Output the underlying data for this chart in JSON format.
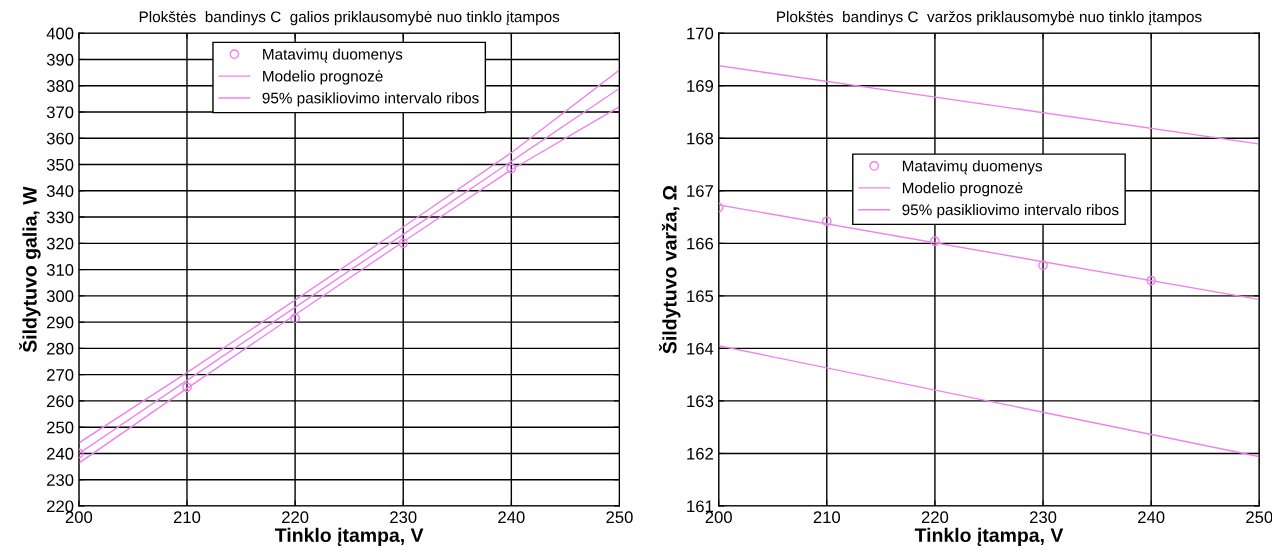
{
  "chart_data": [
    {
      "type": "line",
      "title": "Plokštės  bandinys C  galios priklausomybė nuo tinklo įtampos",
      "xlabel": "Tinklo įtampa, V",
      "ylabel": "Šildytuvo galia, W",
      "xlim": [
        200,
        250
      ],
      "xticks": [
        200,
        210,
        220,
        230,
        240,
        250
      ],
      "ylim": [
        220,
        400
      ],
      "yticks": [
        220,
        230,
        240,
        250,
        260,
        270,
        280,
        290,
        300,
        310,
        320,
        330,
        340,
        350,
        360,
        370,
        380,
        390,
        400
      ],
      "grid": true,
      "legend": "top",
      "series": [
        {
          "name": "Matavimų duomenys",
          "type": "scatter",
          "marker": "circle",
          "color": "#ee82ee",
          "x": [
            200,
            210,
            220,
            230,
            240
          ],
          "values": [
            240,
            265.2,
            291.5,
            320,
            348.5
          ]
        },
        {
          "name": "Modelio prognozė",
          "color": "#ee82ee",
          "x": [
            200,
            210,
            220,
            230,
            240,
            250
          ],
          "values": [
            240,
            267.8,
            295.6,
            323.4,
            351.2,
            379
          ]
        },
        {
          "name": "95% pasikliovimo intervalo ribos",
          "color": "#ee82ee",
          "x": [
            200,
            210,
            220,
            230,
            240,
            250
          ],
          "values": [
            244,
            270.8,
            298.4,
            326.2,
            354.5,
            386
          ]
        },
        {
          "color": "#ee82ee",
          "x": [
            200,
            210,
            220,
            230,
            240,
            250
          ],
          "values": [
            236.3,
            264.8,
            292.8,
            320.6,
            348,
            372
          ]
        }
      ]
    },
    {
      "type": "line",
      "title": "Plokštės  bandinys C  varžos priklausomybė nuo tinklo įtampos",
      "xlabel": "Tinklo įtampa, V",
      "ylabel": "Šildytuvo varža, Ω",
      "xlim": [
        200,
        250
      ],
      "xticks": [
        200,
        210,
        220,
        230,
        240,
        250
      ],
      "ylim": [
        161,
        170
      ],
      "yticks": [
        161,
        162,
        163,
        164,
        165,
        166,
        167,
        168,
        169,
        170
      ],
      "grid": true,
      "legend": "center",
      "series": [
        {
          "name": "Matavimų duomenys",
          "type": "scatter",
          "marker": "circle",
          "color": "#ee82ee",
          "x": [
            200,
            210,
            220,
            230,
            240
          ],
          "values": [
            166.68,
            166.42,
            166.04,
            165.58,
            165.29
          ]
        },
        {
          "name": "Modelio prognozė",
          "color": "#ee82ee",
          "x": [
            200,
            250
          ],
          "values": [
            166.73,
            164.93
          ]
        },
        {
          "name": "95% pasikliovimo intervalo ribos",
          "color": "#ee82ee",
          "x": [
            200,
            250
          ],
          "values": [
            169.38,
            167.89
          ]
        },
        {
          "color": "#ee82ee",
          "x": [
            200,
            250
          ],
          "values": [
            164.05,
            161.94
          ]
        }
      ]
    }
  ]
}
